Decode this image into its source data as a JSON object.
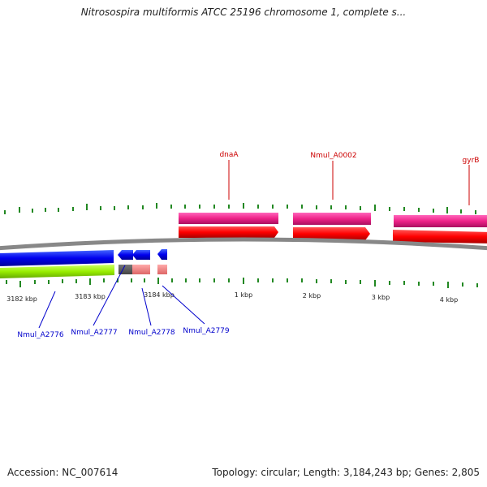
{
  "title": "Nitrosospira multiformis ATCC 25196 chromosome 1, complete s...",
  "footer": {
    "accession": "Accession: NC_007614",
    "summary": "Topology: circular; Length: 3,184,243 bp; Genes: 2,805"
  },
  "axis_labels": [
    "3182 kbp",
    "3183 kbp",
    "3184 kbp",
    "1 kbp",
    "2 kbp",
    "3 kbp",
    "4 kbp"
  ],
  "genes_top": [
    {
      "name": "dnaA"
    },
    {
      "name": "Nmul_A0002"
    },
    {
      "name": "gyrB"
    }
  ],
  "genes_bottom": [
    {
      "name": "Nmul_A2776"
    },
    {
      "name": "Nmul_A2777"
    },
    {
      "name": "Nmul_A2778"
    },
    {
      "name": "Nmul_A2779"
    }
  ],
  "colors": {
    "forward_gene": "#ff0000",
    "forward_cds": "#ee2288",
    "reverse_gene": "#0000ee",
    "reverse_cds": "#99ee00",
    "backbone": "#888888",
    "tick": "#228822",
    "label_top": "#cc0000",
    "label_bottom": "#0000cc"
  }
}
